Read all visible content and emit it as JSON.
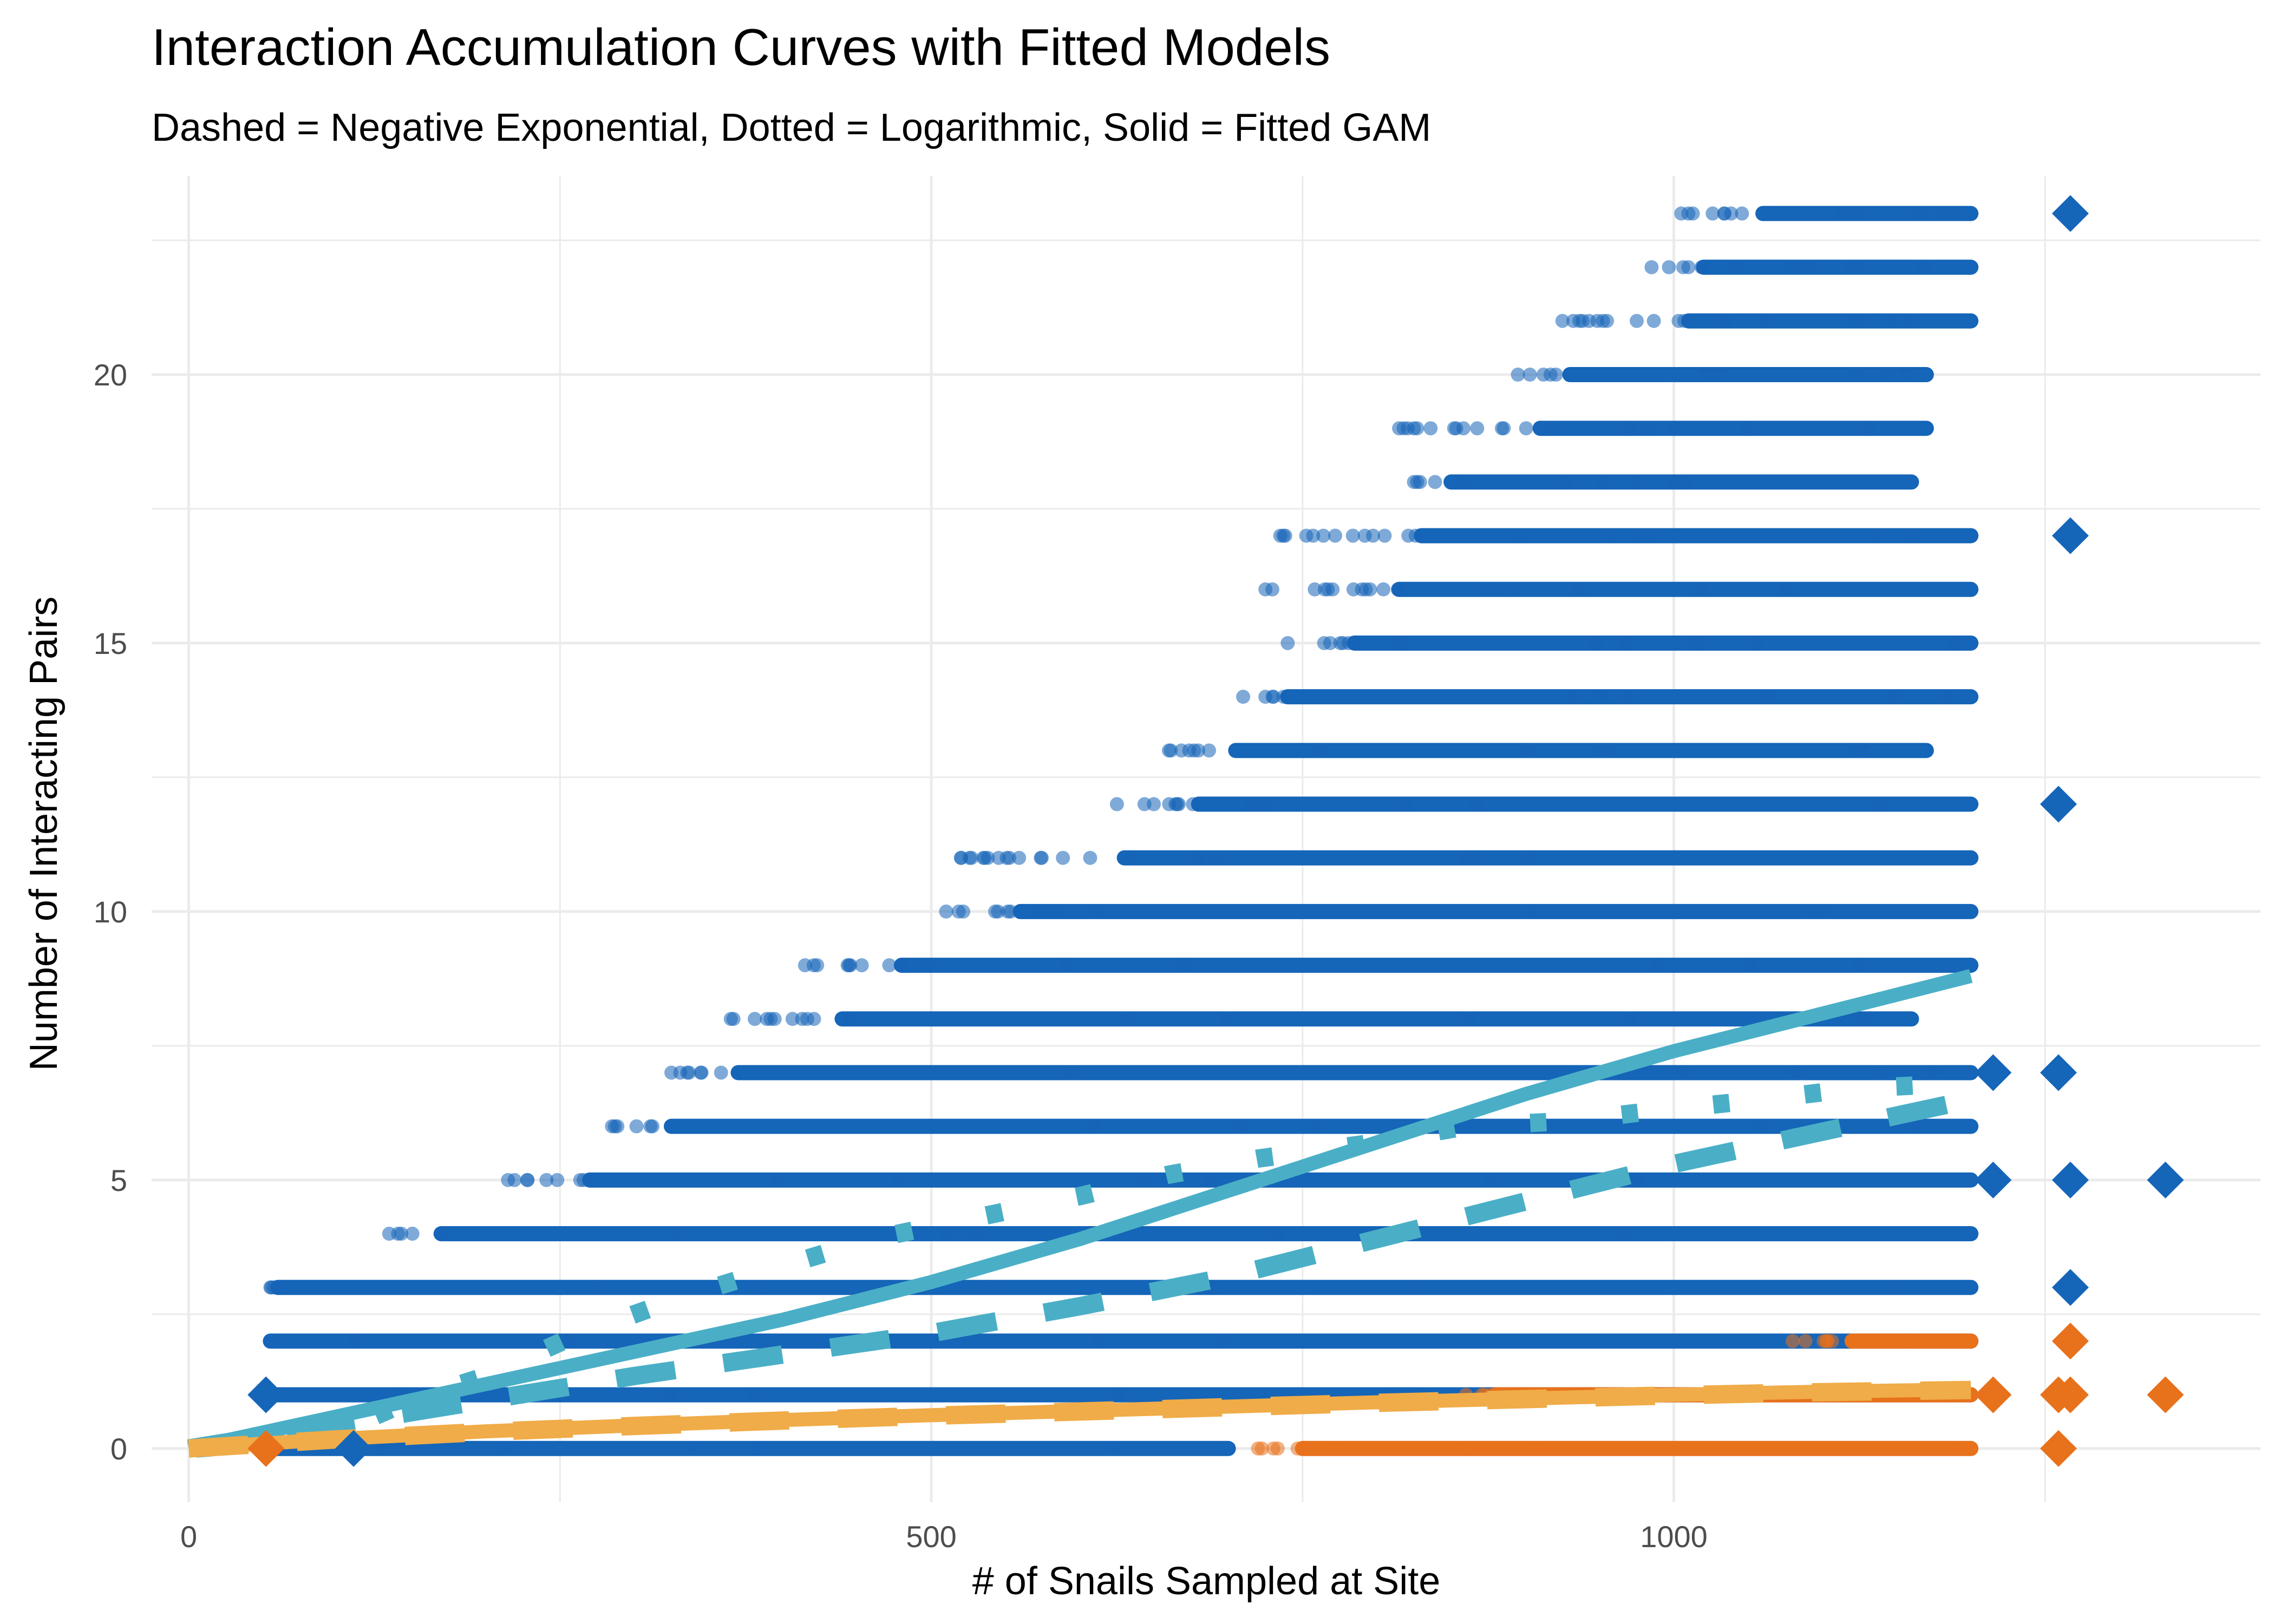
{
  "chart_data": {
    "type": "scatter",
    "title": "Interaction Accumulation Curves with Fitted Models",
    "subtitle": "Dashed = Negative Exponential, Dotted = Logarithmic, Solid = Fitted GAM",
    "xlabel": "# of Snails Sampled at Site",
    "ylabel": "Number of Interacting Pairs",
    "xlim": [
      -25,
      1395
    ],
    "ylim": [
      -1,
      23.7
    ],
    "x_ticks": [
      0,
      500,
      1000
    ],
    "y_ticks": [
      0,
      5,
      10,
      15,
      20
    ],
    "grid": true,
    "legend": "none",
    "colors": {
      "blue_points": "#1565b8",
      "orange_points": "#e8711c",
      "teal_curve": "#4aafc6",
      "gold_curve": "#f0ac48",
      "blue_diamond": "#1565b8",
      "orange_diamond": "#e8711c"
    },
    "series": [
      {
        "kind": "points-bands",
        "color_key": "blue_points",
        "bands": [
          {
            "y": 0,
            "x_start": 55,
            "x_end": 700,
            "dense_start": 55
          },
          {
            "y": 1,
            "x_start": 55,
            "x_end": 1200,
            "dense_start": 55
          },
          {
            "y": 2,
            "x_start": 55,
            "x_end": 1200,
            "dense_start": 55
          },
          {
            "y": 3,
            "x_start": 55,
            "x_end": 1200,
            "dense_start": 60
          },
          {
            "y": 4,
            "x_start": 135,
            "x_end": 1200,
            "dense_start": 170
          },
          {
            "y": 5,
            "x_start": 215,
            "x_end": 1200,
            "dense_start": 270
          },
          {
            "y": 6,
            "x_start": 285,
            "x_end": 1200,
            "dense_start": 325
          },
          {
            "y": 7,
            "x_start": 325,
            "x_end": 1200,
            "dense_start": 370
          },
          {
            "y": 8,
            "x_start": 365,
            "x_end": 1160,
            "dense_start": 440
          },
          {
            "y": 9,
            "x_start": 415,
            "x_end": 1200,
            "dense_start": 480
          },
          {
            "y": 10,
            "x_start": 510,
            "x_end": 1200,
            "dense_start": 560
          },
          {
            "y": 11,
            "x_start": 520,
            "x_end": 1200,
            "dense_start": 630
          },
          {
            "y": 12,
            "x_start": 625,
            "x_end": 1200,
            "dense_start": 680
          },
          {
            "y": 13,
            "x_start": 660,
            "x_end": 1170,
            "dense_start": 705
          },
          {
            "y": 14,
            "x_start": 710,
            "x_end": 1200,
            "dense_start": 740
          },
          {
            "y": 15,
            "x_start": 740,
            "x_end": 1200,
            "dense_start": 785
          },
          {
            "y": 16,
            "x_start": 725,
            "x_end": 1200,
            "dense_start": 815
          },
          {
            "y": 17,
            "x_start": 735,
            "x_end": 1200,
            "dense_start": 830
          },
          {
            "y": 18,
            "x_start": 825,
            "x_end": 1160,
            "dense_start": 850
          },
          {
            "y": 19,
            "x_start": 815,
            "x_end": 1170,
            "dense_start": 910
          },
          {
            "y": 20,
            "x_start": 895,
            "x_end": 1170,
            "dense_start": 930
          },
          {
            "y": 21,
            "x_start": 925,
            "x_end": 1200,
            "dense_start": 1010
          },
          {
            "y": 22,
            "x_start": 985,
            "x_end": 1200,
            "dense_start": 1020
          },
          {
            "y": 23,
            "x_start": 1005,
            "x_end": 1200,
            "dense_start": 1060
          }
        ]
      },
      {
        "kind": "points-bands",
        "color_key": "orange_points",
        "bands": [
          {
            "y": 0,
            "x_start": 720,
            "x_end": 1200,
            "dense_start": 750
          },
          {
            "y": 1,
            "x_start": 860,
            "x_end": 1200,
            "dense_start": 880
          },
          {
            "y": 2,
            "x_start": 1080,
            "x_end": 1200,
            "dense_start": 1120
          }
        ]
      },
      {
        "kind": "diamonds",
        "color_key": "blue_diamond",
        "points": [
          [
            52,
            1
          ],
          [
            111,
            0
          ],
          [
            1267,
            23
          ],
          [
            1267,
            17
          ],
          [
            1259,
            12
          ],
          [
            1215,
            7
          ],
          [
            1259,
            7
          ],
          [
            1215,
            5
          ],
          [
            1267,
            5
          ],
          [
            1331,
            5
          ],
          [
            1267,
            3
          ]
        ]
      },
      {
        "kind": "diamonds",
        "color_key": "orange_diamond",
        "points": [
          [
            52,
            0
          ],
          [
            1267,
            2
          ],
          [
            1215,
            1
          ],
          [
            1259,
            1
          ],
          [
            1267,
            1
          ],
          [
            1331,
            1
          ],
          [
            1259,
            0
          ]
        ]
      },
      {
        "kind": "curve",
        "style": "solid",
        "color_key": "teal_curve",
        "x": [
          0,
          100,
          200,
          300,
          400,
          500,
          600,
          700,
          800,
          900,
          1000,
          1100,
          1200
        ],
        "y": [
          0,
          0.6,
          1.2,
          1.8,
          2.4,
          3.1,
          3.9,
          4.8,
          5.7,
          6.6,
          7.4,
          8.1,
          8.8
        ]
      },
      {
        "kind": "curve",
        "style": "dotted",
        "color_key": "teal_curve",
        "x": [
          5,
          50,
          100,
          150,
          200,
          260,
          330,
          400,
          460,
          530,
          600,
          660,
          720,
          800,
          860,
          930,
          990,
          1060,
          1120,
          1190
        ],
        "y": [
          0,
          0.1,
          0.3,
          0.9,
          1.35,
          2.1,
          2.8,
          3.4,
          3.9,
          4.3,
          4.7,
          5.1,
          5.4,
          5.7,
          6.0,
          6.1,
          6.3,
          6.5,
          6.7,
          6.8
        ]
      },
      {
        "kind": "curve",
        "style": "dashed",
        "color_key": "teal_curve",
        "x": [
          0,
          100,
          200,
          300,
          400,
          500,
          600,
          700,
          800,
          900,
          1000,
          1100,
          1200
        ],
        "y": [
          0,
          0.45,
          0.9,
          1.35,
          1.75,
          2.15,
          2.65,
          3.2,
          3.9,
          4.6,
          5.3,
          5.9,
          6.5
        ]
      },
      {
        "kind": "curve",
        "style": "solid",
        "color_key": "gold_curve",
        "x": [
          0,
          100,
          200,
          300,
          400,
          500,
          600,
          700,
          800,
          900,
          1000,
          1100,
          1200
        ],
        "y": [
          0,
          0.18,
          0.32,
          0.43,
          0.53,
          0.62,
          0.7,
          0.78,
          0.86,
          0.93,
          1.0,
          1.06,
          1.1
        ]
      },
      {
        "kind": "curve",
        "style": "dashed",
        "color_key": "gold_curve",
        "x": [
          0,
          100,
          200,
          300,
          400,
          500,
          600,
          700,
          800,
          900,
          1000,
          1100,
          1200
        ],
        "y": [
          0,
          0.17,
          0.31,
          0.42,
          0.52,
          0.61,
          0.69,
          0.77,
          0.85,
          0.92,
          0.99,
          1.05,
          1.09
        ]
      }
    ]
  }
}
